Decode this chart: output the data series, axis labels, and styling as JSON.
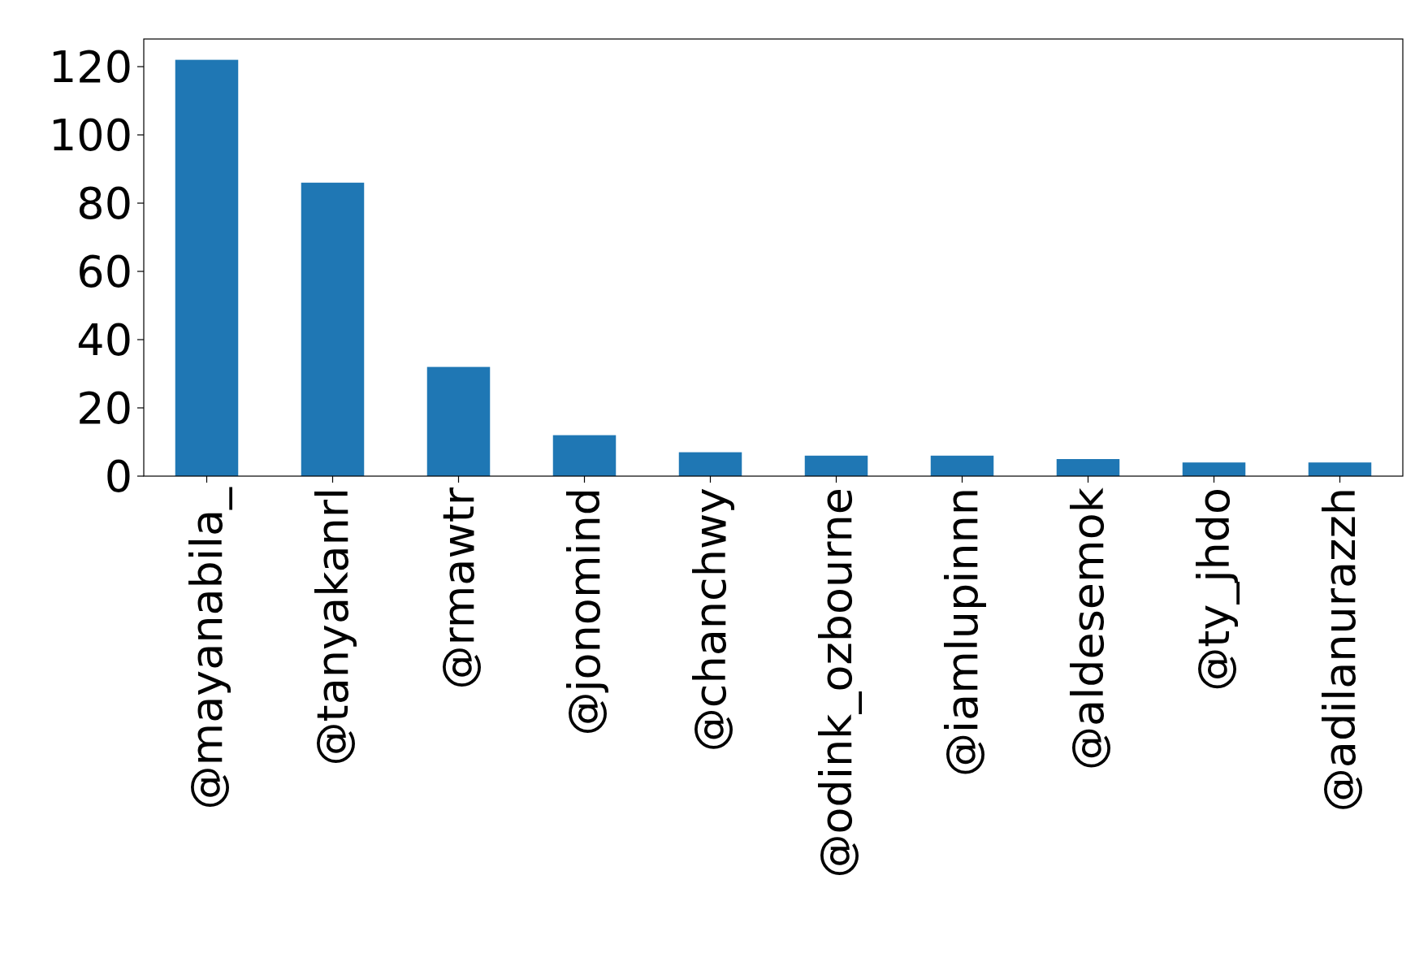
{
  "chart_data": {
    "type": "bar",
    "categories": [
      "@mayanabila_",
      "@tanyakanrl",
      "@rmawtr",
      "@jonomind",
      "@chanchwy",
      "@odink_ozbourne",
      "@iamlupinnn",
      "@aldesemok",
      "@ty_jhdo",
      "@adilanurazzh"
    ],
    "values": [
      122,
      86,
      32,
      12,
      7,
      6,
      6,
      5,
      4,
      4
    ],
    "color": "#1f77b4",
    "ylim": [
      0,
      128.1
    ],
    "yticks": [
      0,
      20,
      40,
      60,
      80,
      100,
      120
    ],
    "grid": false
  }
}
